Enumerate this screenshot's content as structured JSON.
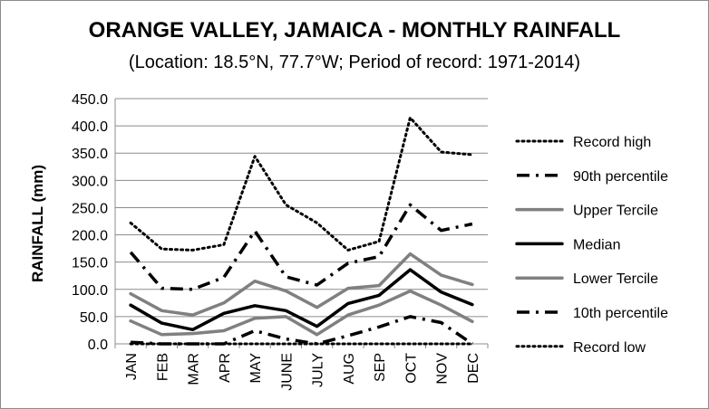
{
  "chart_data": {
    "type": "line",
    "title": "ORANGE VALLEY, JAMAICA - MONTHLY RAINFALL",
    "subtitle": "(Location: 18.5°N, 77.7°W; Period of record: 1971-2014)",
    "xlabel": "",
    "ylabel": "RAINFALL (mm)",
    "ylim": [
      0,
      450
    ],
    "yticks": [
      "0.0",
      "50.0",
      "100.0",
      "150.0",
      "200.0",
      "250.0",
      "300.0",
      "350.0",
      "400.0",
      "450.0"
    ],
    "categories": [
      "JAN",
      "FEB",
      "MAR",
      "APR",
      "MAY",
      "JUNE",
      "JULY",
      "AUG",
      "SEP",
      "OCT",
      "NOV",
      "DEC"
    ],
    "grid": true,
    "legend": "right",
    "series": [
      {
        "name": "Record high",
        "style": "dotted",
        "color": "#000000",
        "values": [
          222,
          174,
          172,
          182,
          344,
          255,
          222,
          172,
          188,
          415,
          352,
          347
        ]
      },
      {
        "name": "90th percentile",
        "style": "dashdot",
        "color": "#000000",
        "values": [
          168,
          102,
          100,
          122,
          207,
          123,
          108,
          148,
          160,
          255,
          208,
          220
        ]
      },
      {
        "name": "Upper Tercile",
        "style": "solid",
        "color": "#808080",
        "values": [
          92,
          61,
          53,
          75,
          115,
          97,
          67,
          102,
          107,
          165,
          126,
          109
        ]
      },
      {
        "name": "Median",
        "style": "solid",
        "color": "#000000",
        "values": [
          71,
          38,
          26,
          56,
          70,
          61,
          32,
          74,
          89,
          136,
          95,
          72
        ]
      },
      {
        "name": "Lower Tercile",
        "style": "solid",
        "color": "#808080",
        "values": [
          42,
          17,
          19,
          24,
          47,
          50,
          17,
          53,
          71,
          97,
          71,
          41
        ]
      },
      {
        "name": "10th percentile",
        "style": "dashdot",
        "color": "#000000",
        "values": [
          3,
          0,
          0,
          0,
          24,
          9,
          0,
          15,
          31,
          50,
          39,
          0
        ]
      },
      {
        "name": "Record low",
        "style": "dotted",
        "color": "#000000",
        "values": [
          0,
          0,
          0,
          0,
          0,
          0,
          0,
          0,
          0,
          0,
          0,
          0
        ]
      }
    ]
  }
}
